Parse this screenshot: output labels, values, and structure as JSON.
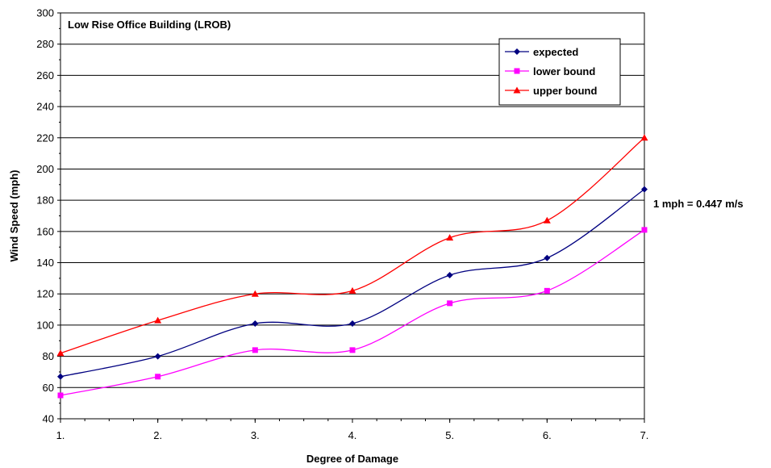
{
  "chart_data": {
    "type": "line",
    "title": "Low Rise Office Building (LROB)",
    "xlabel": "Degree of Damage",
    "ylabel": "Wind Speed (mph)",
    "categories": [
      "1.",
      "2.",
      "3.",
      "4.",
      "5.",
      "6.",
      "7."
    ],
    "ylim": [
      40,
      300
    ],
    "yticks": [
      40,
      60,
      80,
      100,
      120,
      140,
      160,
      180,
      200,
      220,
      240,
      260,
      280,
      300
    ],
    "grid": true,
    "legend_position": "top-right",
    "annotation": "1 mph = 0.447 m/s",
    "series": [
      {
        "name": "expected",
        "color": "#000080",
        "marker": "diamond",
        "values": [
          67,
          80,
          101,
          101,
          132,
          143,
          187
        ]
      },
      {
        "name": "lower bound",
        "color": "#ff00ff",
        "marker": "square",
        "values": [
          55,
          67,
          84,
          84,
          114,
          122,
          161
        ]
      },
      {
        "name": "upper bound",
        "color": "#ff0000",
        "marker": "triangle",
        "values": [
          82,
          103,
          120,
          122,
          156,
          167,
          220
        ]
      }
    ]
  }
}
